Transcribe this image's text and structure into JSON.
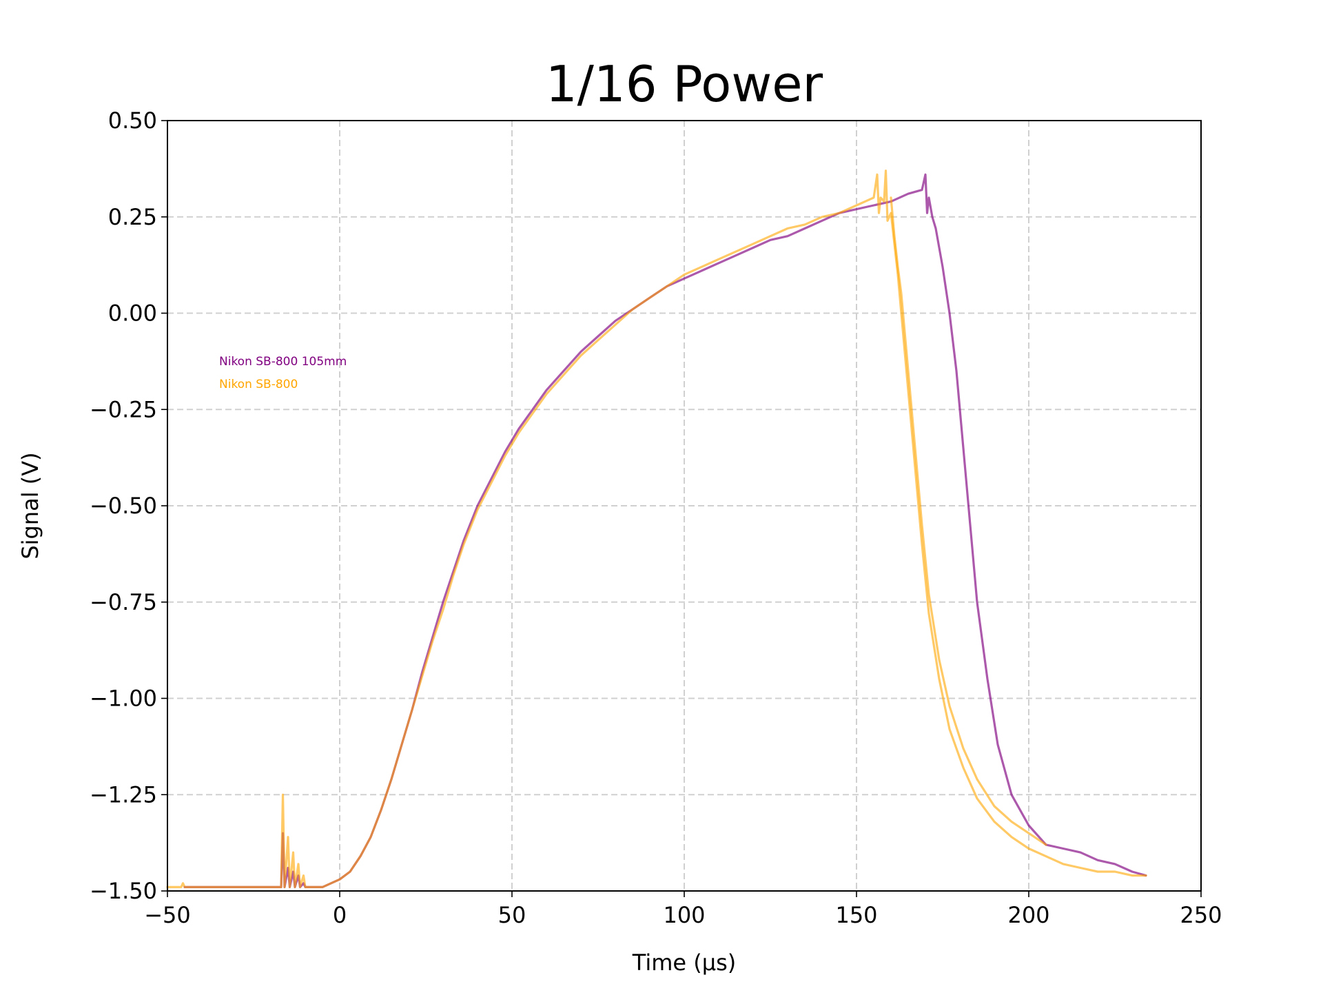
{
  "chart_data": {
    "type": "line",
    "title": "1/16 Power",
    "xlabel": "Time (µs)",
    "ylabel": "Signal (V)",
    "xlim": [
      -50,
      250
    ],
    "ylim": [
      -1.5,
      0.5
    ],
    "x_ticks": [
      -50,
      0,
      50,
      100,
      150,
      200,
      250
    ],
    "x_tick_labels": [
      "−50",
      "0",
      "50",
      "100",
      "150",
      "200",
      "250"
    ],
    "y_ticks": [
      0.5,
      0.25,
      0.0,
      -0.25,
      -0.5,
      -0.75,
      -1.0,
      -1.25,
      -1.5
    ],
    "y_tick_labels": [
      "0.50",
      "0.25",
      "0.00",
      "−0.25",
      "−0.50",
      "−0.75",
      "−1.00",
      "−1.25",
      "−1.50"
    ],
    "grid": true,
    "legend_position": "left",
    "series": [
      {
        "name": "Nikon SB-800 105mm",
        "color": "#800080",
        "opacity": 0.65,
        "points": [
          [
            -45,
            -1.49
          ],
          [
            -30,
            -1.49
          ],
          [
            -17,
            -1.49
          ],
          [
            -16.5,
            -1.35
          ],
          [
            -16,
            -1.49
          ],
          [
            -15,
            -1.44
          ],
          [
            -14.5,
            -1.49
          ],
          [
            -13.5,
            -1.45
          ],
          [
            -13,
            -1.49
          ],
          [
            -12,
            -1.46
          ],
          [
            -11.5,
            -1.49
          ],
          [
            -10.5,
            -1.48
          ],
          [
            -10,
            -1.49
          ],
          [
            -5,
            -1.49
          ],
          [
            0,
            -1.47
          ],
          [
            3,
            -1.45
          ],
          [
            6,
            -1.41
          ],
          [
            9,
            -1.36
          ],
          [
            12,
            -1.29
          ],
          [
            15,
            -1.21
          ],
          [
            18,
            -1.12
          ],
          [
            21,
            -1.03
          ],
          [
            24,
            -0.93
          ],
          [
            27,
            -0.84
          ],
          [
            30,
            -0.75
          ],
          [
            33,
            -0.67
          ],
          [
            36,
            -0.59
          ],
          [
            40,
            -0.5
          ],
          [
            44,
            -0.43
          ],
          [
            48,
            -0.36
          ],
          [
            52,
            -0.3
          ],
          [
            56,
            -0.25
          ],
          [
            60,
            -0.2
          ],
          [
            65,
            -0.15
          ],
          [
            70,
            -0.1
          ],
          [
            75,
            -0.06
          ],
          [
            80,
            -0.02
          ],
          [
            85,
            0.01
          ],
          [
            90,
            0.04
          ],
          [
            95,
            0.07
          ],
          [
            100,
            0.09
          ],
          [
            105,
            0.11
          ],
          [
            110,
            0.13
          ],
          [
            115,
            0.15
          ],
          [
            120,
            0.17
          ],
          [
            125,
            0.19
          ],
          [
            130,
            0.2
          ],
          [
            135,
            0.22
          ],
          [
            140,
            0.24
          ],
          [
            145,
            0.26
          ],
          [
            150,
            0.27
          ],
          [
            155,
            0.28
          ],
          [
            160,
            0.29
          ],
          [
            165,
            0.31
          ],
          [
            169,
            0.32
          ],
          [
            170,
            0.36
          ],
          [
            170.5,
            0.26
          ],
          [
            171,
            0.3
          ],
          [
            172,
            0.25
          ],
          [
            173,
            0.22
          ],
          [
            175,
            0.12
          ],
          [
            177,
            0.0
          ],
          [
            179,
            -0.15
          ],
          [
            181,
            -0.35
          ],
          [
            183,
            -0.55
          ],
          [
            185,
            -0.75
          ],
          [
            188,
            -0.95
          ],
          [
            191,
            -1.12
          ],
          [
            195,
            -1.25
          ],
          [
            200,
            -1.33
          ],
          [
            205,
            -1.38
          ],
          [
            210,
            -1.39
          ],
          [
            215,
            -1.4
          ],
          [
            220,
            -1.42
          ],
          [
            225,
            -1.43
          ],
          [
            230,
            -1.45
          ],
          [
            234,
            -1.46
          ]
        ]
      },
      {
        "name": "Nikon SB-800",
        "color": "#FFA500",
        "opacity": 0.6,
        "points": [
          [
            -50,
            -1.49
          ],
          [
            -46,
            -1.49
          ],
          [
            -45.5,
            -1.48
          ],
          [
            -45,
            -1.49
          ],
          [
            -30,
            -1.49
          ],
          [
            -17,
            -1.49
          ],
          [
            -16.5,
            -1.25
          ],
          [
            -16,
            -1.49
          ],
          [
            -15,
            -1.36
          ],
          [
            -14.5,
            -1.49
          ],
          [
            -13.5,
            -1.4
          ],
          [
            -13,
            -1.49
          ],
          [
            -12,
            -1.43
          ],
          [
            -11.5,
            -1.49
          ],
          [
            -10.5,
            -1.46
          ],
          [
            -10,
            -1.49
          ],
          [
            -5,
            -1.49
          ],
          [
            0,
            -1.47
          ],
          [
            3,
            -1.45
          ],
          [
            6,
            -1.41
          ],
          [
            9,
            -1.36
          ],
          [
            12,
            -1.29
          ],
          [
            15,
            -1.21
          ],
          [
            18,
            -1.12
          ],
          [
            21,
            -1.03
          ],
          [
            24,
            -0.94
          ],
          [
            27,
            -0.85
          ],
          [
            30,
            -0.77
          ],
          [
            33,
            -0.68
          ],
          [
            36,
            -0.6
          ],
          [
            40,
            -0.51
          ],
          [
            44,
            -0.44
          ],
          [
            48,
            -0.37
          ],
          [
            52,
            -0.31
          ],
          [
            56,
            -0.26
          ],
          [
            60,
            -0.21
          ],
          [
            65,
            -0.16
          ],
          [
            70,
            -0.11
          ],
          [
            75,
            -0.07
          ],
          [
            80,
            -0.03
          ],
          [
            85,
            0.01
          ],
          [
            90,
            0.04
          ],
          [
            95,
            0.07
          ],
          [
            100,
            0.1
          ],
          [
            105,
            0.12
          ],
          [
            110,
            0.14
          ],
          [
            115,
            0.16
          ],
          [
            120,
            0.18
          ],
          [
            125,
            0.2
          ],
          [
            130,
            0.22
          ],
          [
            135,
            0.23
          ],
          [
            140,
            0.25
          ],
          [
            145,
            0.26
          ],
          [
            150,
            0.28
          ],
          [
            155,
            0.3
          ],
          [
            156,
            0.36
          ],
          [
            156.5,
            0.26
          ],
          [
            157,
            0.3
          ],
          [
            158,
            0.29
          ],
          [
            158.5,
            0.37
          ],
          [
            159,
            0.24
          ],
          [
            160,
            0.26
          ],
          [
            161,
            0.18
          ],
          [
            162,
            0.1
          ],
          [
            163,
            0.0
          ],
          [
            165,
            -0.2
          ],
          [
            167,
            -0.4
          ],
          [
            169,
            -0.6
          ],
          [
            171,
            -0.78
          ],
          [
            174,
            -0.95
          ],
          [
            177,
            -1.08
          ],
          [
            181,
            -1.18
          ],
          [
            185,
            -1.26
          ],
          [
            190,
            -1.32
          ],
          [
            195,
            -1.36
          ],
          [
            200,
            -1.39
          ],
          [
            205,
            -1.41
          ],
          [
            210,
            -1.43
          ],
          [
            215,
            -1.44
          ],
          [
            220,
            -1.45
          ],
          [
            225,
            -1.45
          ],
          [
            230,
            -1.46
          ],
          [
            234,
            -1.46
          ]
        ]
      },
      {
        "name": "",
        "color": "#FFA500",
        "opacity": 0.6,
        "points": [
          [
            160,
            0.3
          ],
          [
            161,
            0.2
          ],
          [
            162,
            0.12
          ],
          [
            163,
            0.05
          ],
          [
            165,
            -0.15
          ],
          [
            167,
            -0.35
          ],
          [
            169,
            -0.55
          ],
          [
            171,
            -0.73
          ],
          [
            174,
            -0.9
          ],
          [
            177,
            -1.02
          ],
          [
            181,
            -1.13
          ],
          [
            185,
            -1.21
          ],
          [
            190,
            -1.28
          ],
          [
            195,
            -1.32
          ],
          [
            200,
            -1.35
          ],
          [
            205,
            -1.38
          ]
        ]
      }
    ]
  }
}
